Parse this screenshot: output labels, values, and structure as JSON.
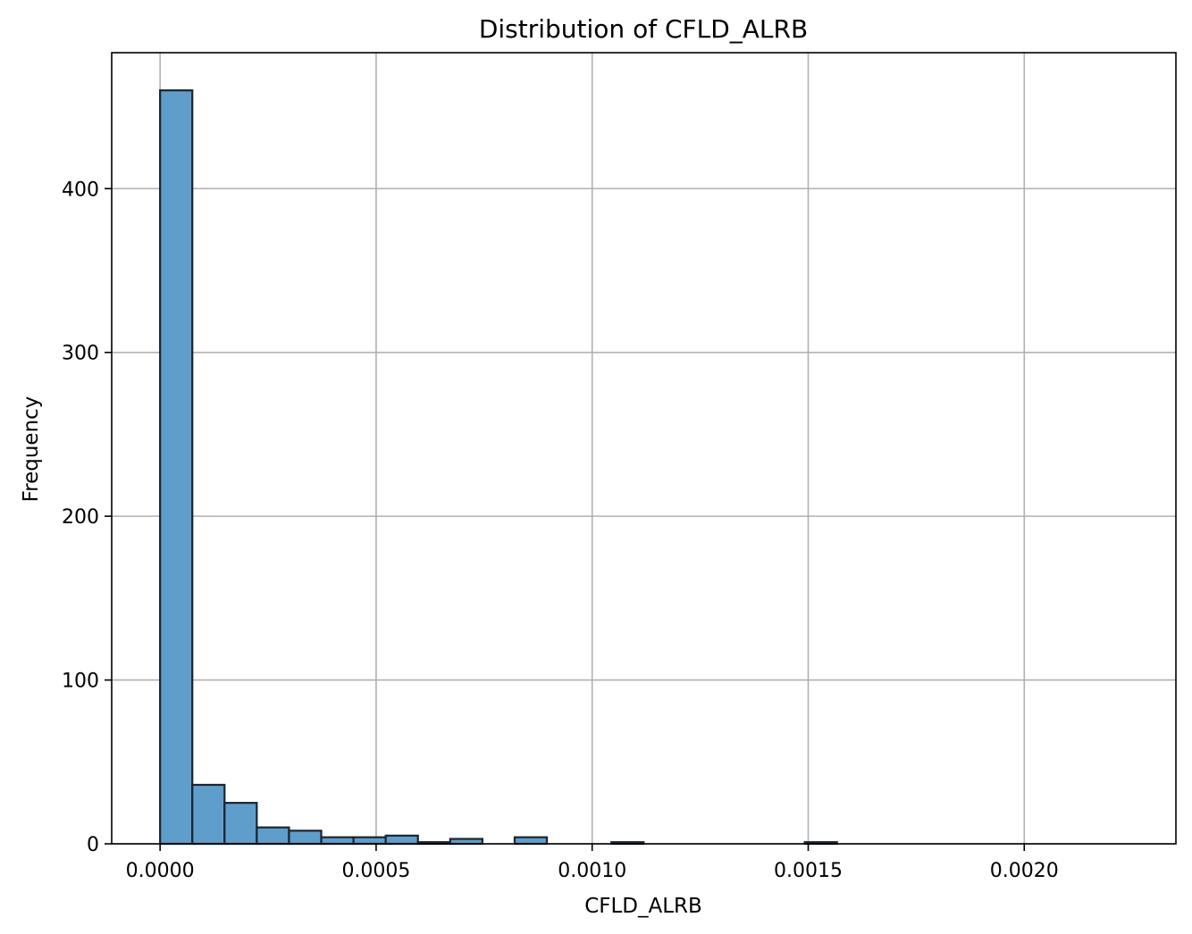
{
  "chart_data": {
    "type": "bar",
    "title": "Distribution of CFLD_ALRB",
    "xlabel": "CFLD_ALRB",
    "ylabel": "Frequency",
    "bin_start": 0.0,
    "bin_width": 7.46e-05,
    "values": [
      460,
      36,
      25,
      10,
      8,
      4,
      4,
      5,
      1,
      3,
      0,
      4,
      0,
      0,
      1,
      0,
      0,
      0,
      0,
      0,
      1,
      0,
      0,
      0,
      0,
      0,
      0,
      0,
      0,
      0
    ],
    "xlim": [
      -0.000112,
      0.002351
    ],
    "ylim": [
      0,
      483
    ],
    "xticks": [
      0.0,
      0.0005,
      0.001,
      0.0015,
      0.002
    ],
    "xtick_labels": [
      "0.0000",
      "0.0005",
      "0.0010",
      "0.0015",
      "0.0020"
    ],
    "yticks": [
      0,
      100,
      200,
      300,
      400
    ],
    "ytick_labels": [
      "0",
      "100",
      "200",
      "300",
      "400"
    ],
    "grid": true,
    "bar_color": "#5f9ecb",
    "edge_color": "#1a2530"
  }
}
